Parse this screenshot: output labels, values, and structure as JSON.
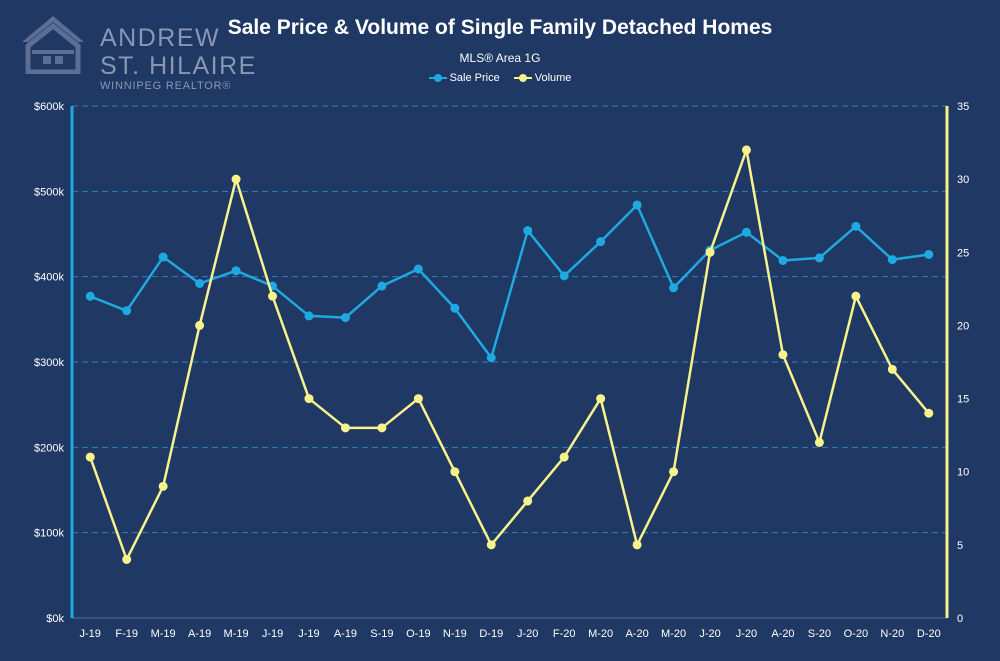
{
  "logo": {
    "line1": "ANDREW",
    "line2": "ST. HILAIRE",
    "line3": "WINNIPEG REALTOR®"
  },
  "chart_data": {
    "type": "line",
    "title": "Sale Price & Volume of Single Family Detached Homes",
    "subtitle": "MLS® Area 1G",
    "categories": [
      "J-19",
      "F-19",
      "M-19",
      "A-19",
      "M-19",
      "J-19",
      "J-19",
      "A-19",
      "S-19",
      "O-19",
      "N-19",
      "D-19",
      "J-20",
      "F-20",
      "M-20",
      "A-20",
      "M-20",
      "J-20",
      "J-20",
      "A-20",
      "S-20",
      "O-20",
      "N-20",
      "D-20"
    ],
    "series": [
      {
        "name": "Sale Price",
        "axis": "left",
        "color": "#1fa9e1",
        "values": [
          377000,
          360000,
          423000,
          392000,
          407000,
          389000,
          354000,
          352000,
          389000,
          409000,
          363000,
          305000,
          454000,
          401000,
          441000,
          484000,
          387000,
          431000,
          452000,
          419000,
          422000,
          459000,
          420000,
          426000
        ]
      },
      {
        "name": "Volume",
        "axis": "right",
        "color": "#f7f28c",
        "values": [
          11,
          4,
          9,
          20,
          30,
          22,
          15,
          13,
          13,
          15,
          10,
          5,
          8,
          11,
          15,
          5,
          10,
          25,
          32,
          18,
          12,
          22,
          17,
          14
        ]
      }
    ],
    "y_left": {
      "min": 0,
      "max": 600000,
      "ticks": [
        0,
        100000,
        200000,
        300000,
        400000,
        500000,
        600000
      ],
      "tick_labels": [
        "$0k",
        "$100k",
        "$200k",
        "$300k",
        "$400k",
        "$500k",
        "$600k"
      ]
    },
    "y_right": {
      "min": 0,
      "max": 35,
      "ticks": [
        0,
        5,
        10,
        15,
        20,
        25,
        30,
        35
      ],
      "tick_labels": [
        "0",
        "5",
        "10",
        "15",
        "20",
        "25",
        "30",
        "35"
      ]
    },
    "grid": true,
    "legend_position": "top-center",
    "colors": {
      "background": "#1f3864",
      "grid": "#2f7fc0",
      "left_axis": "#1fa9e1",
      "right_axis": "#f7f28c"
    }
  }
}
